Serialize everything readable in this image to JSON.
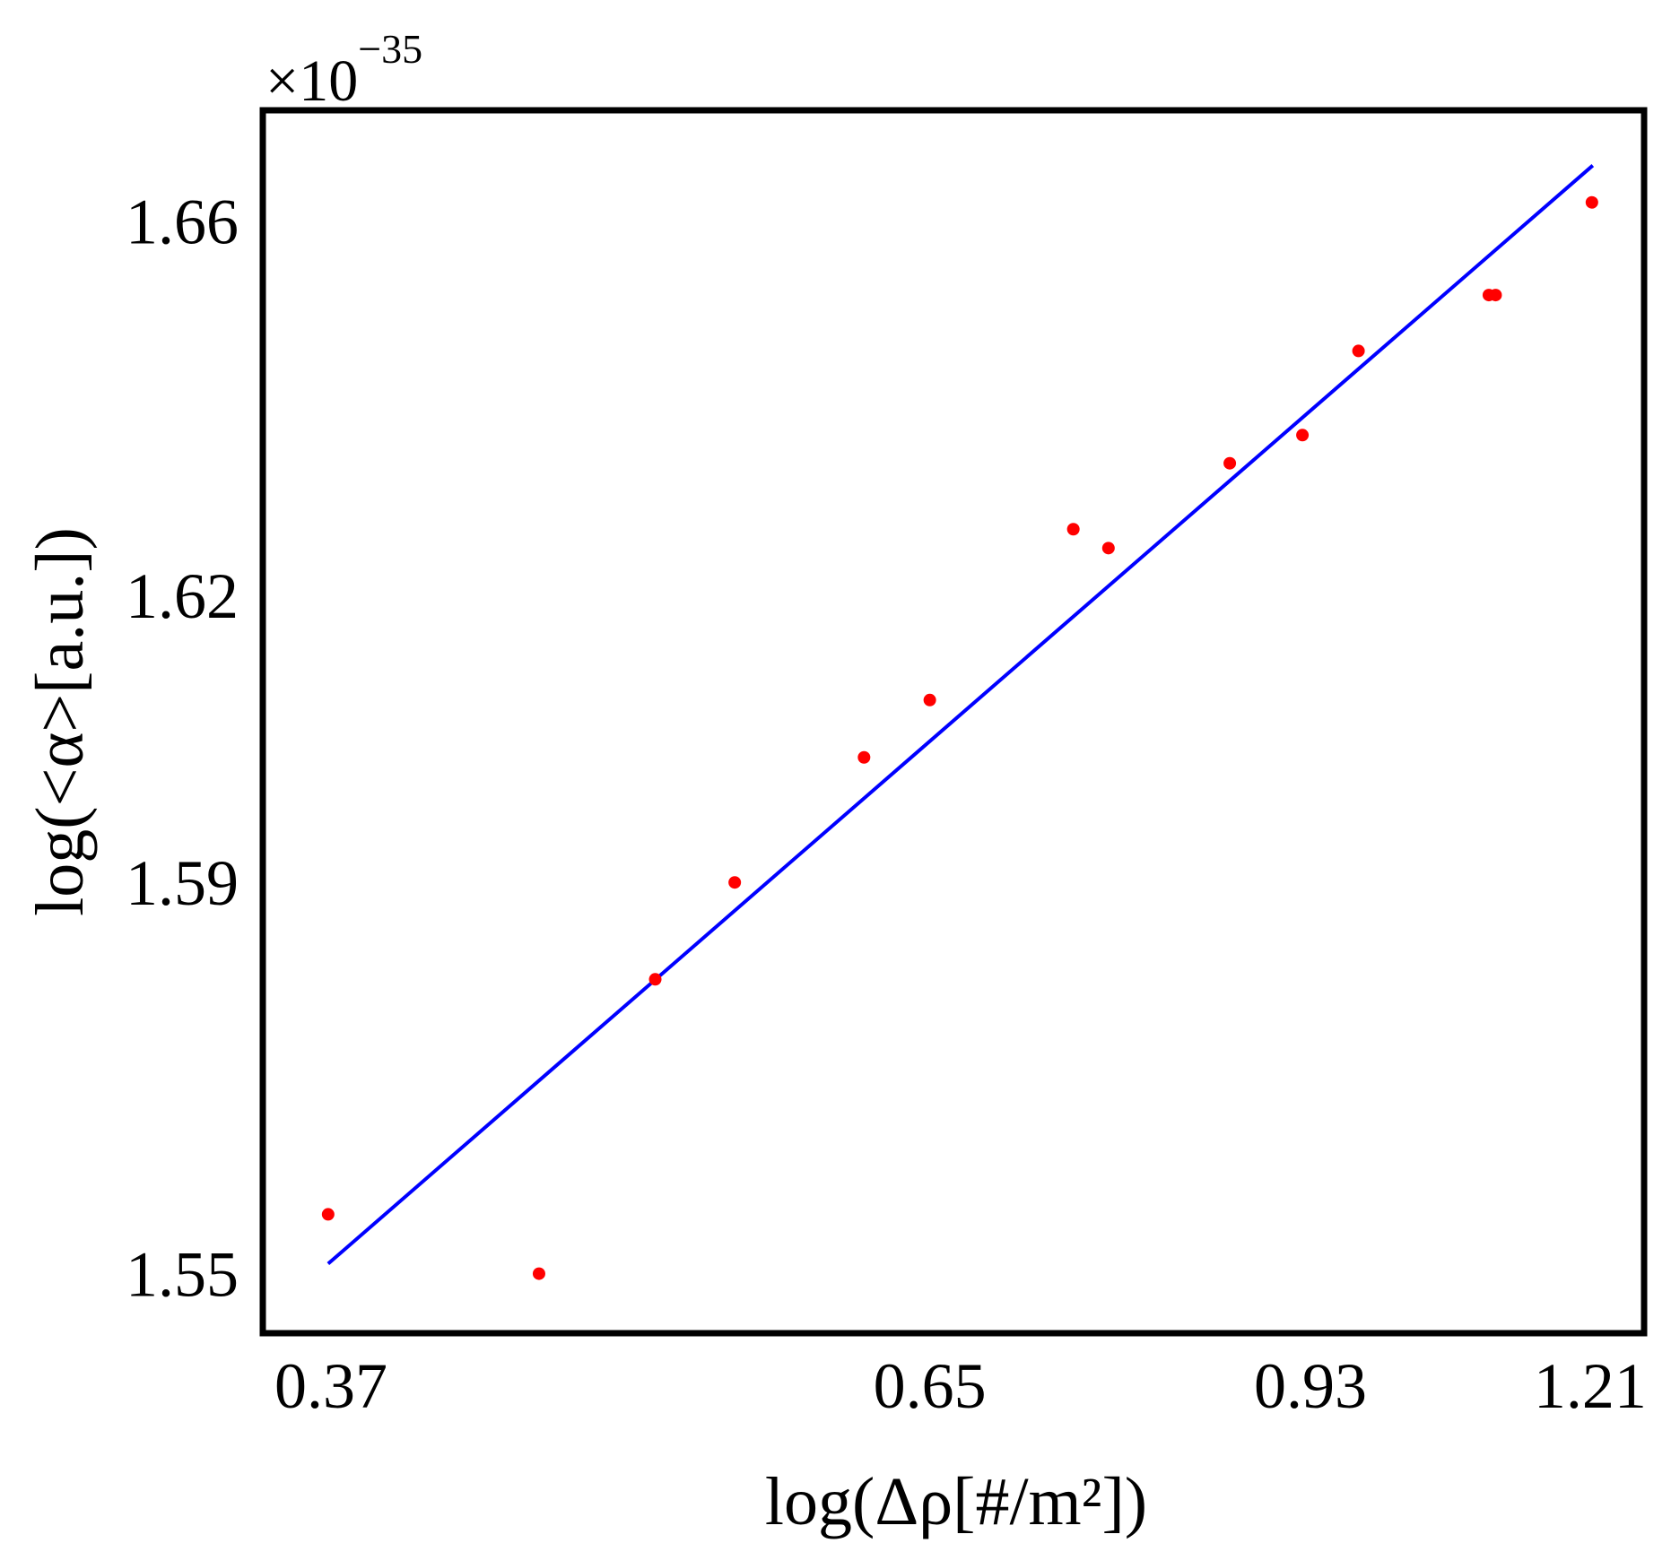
{
  "chart_data": {
    "type": "scatter",
    "title": "",
    "xlabel": "log(Δρ[#/m²])",
    "ylabel": "log(<α>[a.u.])",
    "y_multiplier": "×10",
    "y_multiplier_exponent": "−35",
    "x_scale": "log",
    "y_scale": "log",
    "xlim": [
      0.347,
      1.273
    ],
    "ylim": [
      1.544,
      1.672
    ],
    "x_ticks": [
      0.37,
      0.65,
      0.93,
      1.21
    ],
    "x_tick_labels": [
      "0.37",
      "0.65",
      "0.93",
      "1.21"
    ],
    "y_ticks": [
      1.55,
      1.59,
      1.62,
      1.66
    ],
    "y_tick_labels": [
      "1.55",
      "1.59",
      "1.62",
      "1.66"
    ],
    "grid": false,
    "legend": "none",
    "colors": {
      "points": "#ff0000",
      "fit_line": "#0000ff",
      "frame": "#000000"
    },
    "series": [
      {
        "type": "scatter",
        "x": [
          0.369,
          0.45,
          0.502,
          0.541,
          0.611,
          0.65,
          0.744,
          0.769,
          0.862,
          0.923,
          0.973,
          1.1,
          1.107,
          1.212
        ],
        "y": [
          1.556,
          1.55,
          1.58,
          1.59,
          1.603,
          1.609,
          1.627,
          1.625,
          1.634,
          1.637,
          1.646,
          1.652,
          1.652,
          1.662
        ]
      },
      {
        "type": "line",
        "x": [
          0.369,
          1.213
        ],
        "y": [
          1.551,
          1.666
        ]
      }
    ]
  }
}
